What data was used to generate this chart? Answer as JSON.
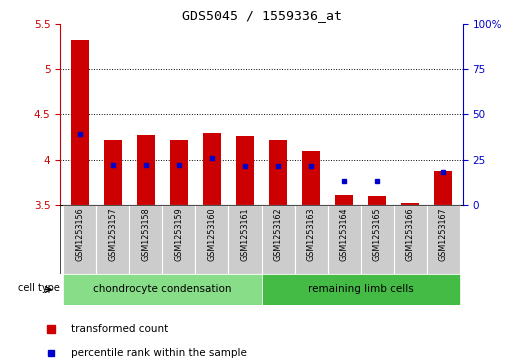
{
  "title": "GDS5045 / 1559336_at",
  "samples": [
    "GSM1253156",
    "GSM1253157",
    "GSM1253158",
    "GSM1253159",
    "GSM1253160",
    "GSM1253161",
    "GSM1253162",
    "GSM1253163",
    "GSM1253164",
    "GSM1253165",
    "GSM1253166",
    "GSM1253167"
  ],
  "red_values": [
    5.32,
    4.22,
    4.27,
    4.22,
    4.29,
    4.26,
    4.22,
    4.1,
    3.61,
    3.6,
    3.52,
    3.88
  ],
  "blue_values": [
    4.28,
    3.94,
    3.94,
    3.94,
    4.02,
    3.93,
    3.93,
    3.93,
    3.77,
    3.77,
    null,
    3.87
  ],
  "ylim_left": [
    3.5,
    5.5
  ],
  "ylim_right": [
    0,
    100
  ],
  "yticks_left": [
    3.5,
    4.0,
    4.5,
    5.0,
    5.5
  ],
  "ytick_labels_left": [
    "3.5",
    "4",
    "4.5",
    "5",
    "5.5"
  ],
  "yticks_right": [
    0,
    25,
    50,
    75,
    100
  ],
  "ytick_labels_right": [
    "0",
    "25",
    "50",
    "75",
    "100%"
  ],
  "bar_color": "#cc0000",
  "dot_color": "#0000cc",
  "group1_label": "chondrocyte condensation",
  "group2_label": "remaining limb cells",
  "group1_color": "#88dd88",
  "group2_color": "#44bb44",
  "cell_type_label": "cell type",
  "bar_color_left": "#cc0000",
  "bar_color_right": "#0000cc",
  "bar_width": 0.55,
  "baseline": 3.5,
  "legend_red": "transformed count",
  "legend_blue": "percentile rank within the sample",
  "grid_vals": [
    4.0,
    4.5,
    5.0
  ],
  "sample_box_color": "#cccccc",
  "n_group1": 6,
  "n_group2": 6
}
